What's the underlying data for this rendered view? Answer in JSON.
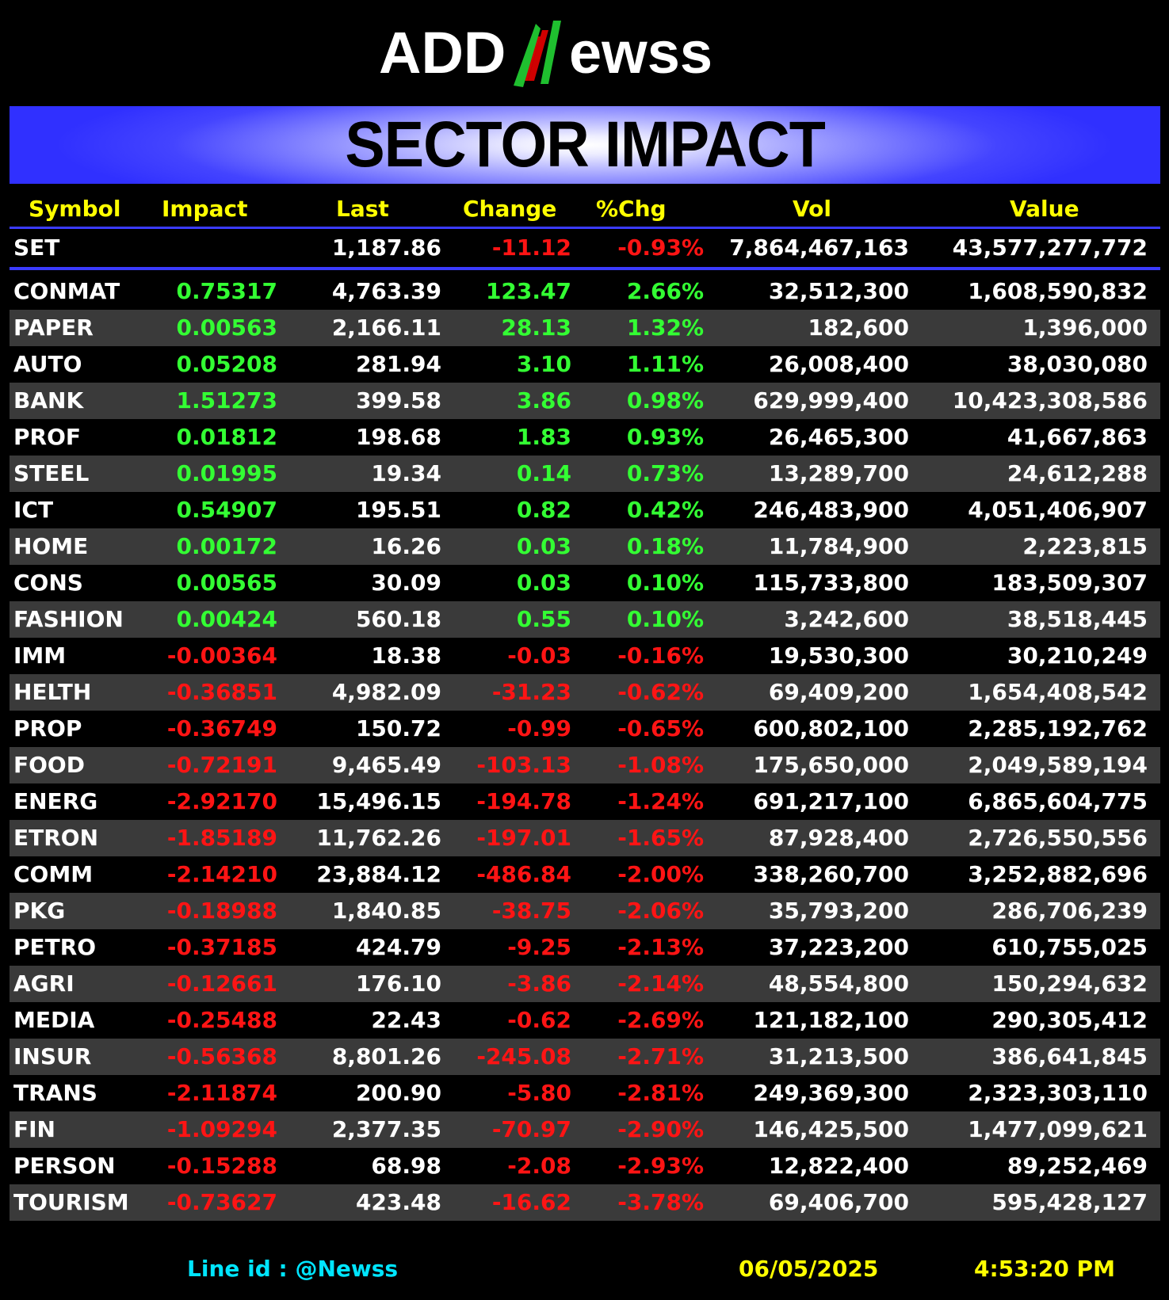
{
  "logo": {
    "text_left": "ADD",
    "text_n": "N",
    "text_right": "ewss",
    "colors": {
      "text": "#ffffff",
      "n_green": "#1fbf2f",
      "n_red": "#d00000"
    }
  },
  "banner": {
    "title": "SECTOR IMPACT",
    "color": "#3030ff"
  },
  "table": {
    "headers": [
      "Symbol",
      "Impact",
      "Last",
      "Change",
      "%Chg",
      "Vol",
      "Value"
    ],
    "summary": {
      "symbol": "SET",
      "impact": "",
      "last": "1,187.86",
      "change": "-11.12",
      "pct": "-0.93%",
      "vol": "7,864,467,163",
      "value": "43,577,277,772",
      "dir": "down"
    },
    "rows": [
      {
        "symbol": "CONMAT",
        "impact": "0.75317",
        "last": "4,763.39",
        "change": "123.47",
        "pct": "2.66%",
        "vol": "32,512,300",
        "value": "1,608,590,832",
        "dir": "up"
      },
      {
        "symbol": "PAPER",
        "impact": "0.00563",
        "last": "2,166.11",
        "change": "28.13",
        "pct": "1.32%",
        "vol": "182,600",
        "value": "1,396,000",
        "dir": "up"
      },
      {
        "symbol": "AUTO",
        "impact": "0.05208",
        "last": "281.94",
        "change": "3.10",
        "pct": "1.11%",
        "vol": "26,008,400",
        "value": "38,030,080",
        "dir": "up"
      },
      {
        "symbol": "BANK",
        "impact": "1.51273",
        "last": "399.58",
        "change": "3.86",
        "pct": "0.98%",
        "vol": "629,999,400",
        "value": "10,423,308,586",
        "dir": "up"
      },
      {
        "symbol": "PROF",
        "impact": "0.01812",
        "last": "198.68",
        "change": "1.83",
        "pct": "0.93%",
        "vol": "26,465,300",
        "value": "41,667,863",
        "dir": "up"
      },
      {
        "symbol": "STEEL",
        "impact": "0.01995",
        "last": "19.34",
        "change": "0.14",
        "pct": "0.73%",
        "vol": "13,289,700",
        "value": "24,612,288",
        "dir": "up"
      },
      {
        "symbol": "ICT",
        "impact": "0.54907",
        "last": "195.51",
        "change": "0.82",
        "pct": "0.42%",
        "vol": "246,483,900",
        "value": "4,051,406,907",
        "dir": "up"
      },
      {
        "symbol": "HOME",
        "impact": "0.00172",
        "last": "16.26",
        "change": "0.03",
        "pct": "0.18%",
        "vol": "11,784,900",
        "value": "2,223,815",
        "dir": "up"
      },
      {
        "symbol": "CONS",
        "impact": "0.00565",
        "last": "30.09",
        "change": "0.03",
        "pct": "0.10%",
        "vol": "115,733,800",
        "value": "183,509,307",
        "dir": "up"
      },
      {
        "symbol": "FASHION",
        "impact": "0.00424",
        "last": "560.18",
        "change": "0.55",
        "pct": "0.10%",
        "vol": "3,242,600",
        "value": "38,518,445",
        "dir": "up"
      },
      {
        "symbol": "IMM",
        "impact": "-0.00364",
        "last": "18.38",
        "change": "-0.03",
        "pct": "-0.16%",
        "vol": "19,530,300",
        "value": "30,210,249",
        "dir": "down"
      },
      {
        "symbol": "HELTH",
        "impact": "-0.36851",
        "last": "4,982.09",
        "change": "-31.23",
        "pct": "-0.62%",
        "vol": "69,409,200",
        "value": "1,654,408,542",
        "dir": "down"
      },
      {
        "symbol": "PROP",
        "impact": "-0.36749",
        "last": "150.72",
        "change": "-0.99",
        "pct": "-0.65%",
        "vol": "600,802,100",
        "value": "2,285,192,762",
        "dir": "down"
      },
      {
        "symbol": "FOOD",
        "impact": "-0.72191",
        "last": "9,465.49",
        "change": "-103.13",
        "pct": "-1.08%",
        "vol": "175,650,000",
        "value": "2,049,589,194",
        "dir": "down"
      },
      {
        "symbol": "ENERG",
        "impact": "-2.92170",
        "last": "15,496.15",
        "change": "-194.78",
        "pct": "-1.24%",
        "vol": "691,217,100",
        "value": "6,865,604,775",
        "dir": "down"
      },
      {
        "symbol": "ETRON",
        "impact": "-1.85189",
        "last": "11,762.26",
        "change": "-197.01",
        "pct": "-1.65%",
        "vol": "87,928,400",
        "value": "2,726,550,556",
        "dir": "down"
      },
      {
        "symbol": "COMM",
        "impact": "-2.14210",
        "last": "23,884.12",
        "change": "-486.84",
        "pct": "-2.00%",
        "vol": "338,260,700",
        "value": "3,252,882,696",
        "dir": "down"
      },
      {
        "symbol": "PKG",
        "impact": "-0.18988",
        "last": "1,840.85",
        "change": "-38.75",
        "pct": "-2.06%",
        "vol": "35,793,200",
        "value": "286,706,239",
        "dir": "down"
      },
      {
        "symbol": "PETRO",
        "impact": "-0.37185",
        "last": "424.79",
        "change": "-9.25",
        "pct": "-2.13%",
        "vol": "37,223,200",
        "value": "610,755,025",
        "dir": "down"
      },
      {
        "symbol": "AGRI",
        "impact": "-0.12661",
        "last": "176.10",
        "change": "-3.86",
        "pct": "-2.14%",
        "vol": "48,554,800",
        "value": "150,294,632",
        "dir": "down"
      },
      {
        "symbol": "MEDIA",
        "impact": "-0.25488",
        "last": "22.43",
        "change": "-0.62",
        "pct": "-2.69%",
        "vol": "121,182,100",
        "value": "290,305,412",
        "dir": "down"
      },
      {
        "symbol": "INSUR",
        "impact": "-0.56368",
        "last": "8,801.26",
        "change": "-245.08",
        "pct": "-2.71%",
        "vol": "31,213,500",
        "value": "386,641,845",
        "dir": "down"
      },
      {
        "symbol": "TRANS",
        "impact": "-2.11874",
        "last": "200.90",
        "change": "-5.80",
        "pct": "-2.81%",
        "vol": "249,369,300",
        "value": "2,323,303,110",
        "dir": "down"
      },
      {
        "symbol": "FIN",
        "impact": "-1.09294",
        "last": "2,377.35",
        "change": "-70.97",
        "pct": "-2.90%",
        "vol": "146,425,500",
        "value": "1,477,099,621",
        "dir": "down"
      },
      {
        "symbol": "PERSON",
        "impact": "-0.15288",
        "last": "68.98",
        "change": "-2.08",
        "pct": "-2.93%",
        "vol": "12,822,400",
        "value": "89,252,469",
        "dir": "down"
      },
      {
        "symbol": "TOURISM",
        "impact": "-0.73627",
        "last": "423.48",
        "change": "-16.62",
        "pct": "-3.78%",
        "vol": "69,406,700",
        "value": "595,428,127",
        "dir": "down"
      }
    ],
    "colors": {
      "header_text": "#ffff00",
      "up": "#33ff33",
      "down": "#ff1414",
      "alt_row": "#3a3a3a",
      "divider": "#3b3bff"
    }
  },
  "footer": {
    "line_id": "Line id  : @Newss",
    "date": "06/05/2025",
    "time": "4:53:20 PM",
    "colors": {
      "line_id": "#00e5ff",
      "date_time": "#ffff00"
    }
  }
}
